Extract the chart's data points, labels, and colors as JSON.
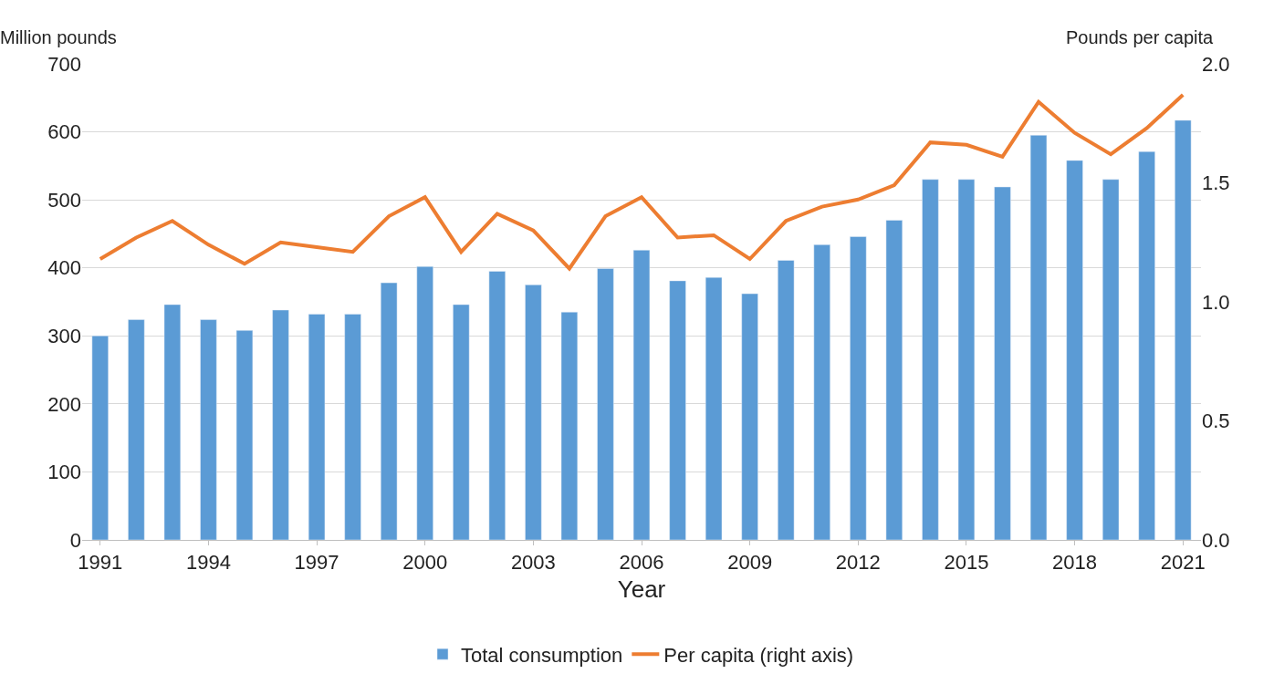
{
  "chart_data": {
    "type": "bar",
    "xlabel": "Year",
    "ylabel": "Million pounds",
    "y2label": "Pounds per capita",
    "x": [
      1991,
      1992,
      1993,
      1994,
      1995,
      1996,
      1997,
      1998,
      1999,
      2000,
      2001,
      2002,
      2003,
      2004,
      2005,
      2006,
      2007,
      2008,
      2009,
      2010,
      2011,
      2012,
      2013,
      2014,
      2015,
      2016,
      2017,
      2018,
      2019,
      2020,
      2021
    ],
    "xlim": [
      1990.5,
      2021.5
    ],
    "xticks": [
      1991,
      1994,
      1997,
      2000,
      2003,
      2006,
      2009,
      2012,
      2015,
      2018,
      2021
    ],
    "ylim": [
      0,
      700
    ],
    "yticks": [
      0,
      100,
      200,
      300,
      400,
      500,
      600,
      700
    ],
    "y2lim": [
      0,
      2
    ],
    "y2ticks": [
      {
        "value": 0,
        "label": "0.0"
      },
      {
        "value": 0.5,
        "label": "0.5"
      },
      {
        "value": 1,
        "label": "1.0"
      },
      {
        "value": 1.5,
        "label": "1.5"
      },
      {
        "value": 2,
        "label": "2.0"
      }
    ],
    "series": [
      {
        "name": "Total consumption",
        "color": "#5b9bd5",
        "values": [
          300,
          324,
          346,
          324,
          308,
          338,
          332,
          332,
          378,
          402,
          346,
          395,
          375,
          335,
          399,
          426,
          381,
          386,
          362,
          411,
          434,
          446,
          470,
          530,
          530,
          519,
          595,
          558,
          530,
          571,
          617
        ]
      },
      {
        "name": "Per capita (right axis)",
        "type": "line",
        "axis": "y2",
        "color": "#ed7d31",
        "line_style": "solid",
        "values": [
          1.18,
          1.27,
          1.34,
          1.24,
          1.16,
          1.25,
          1.23,
          1.21,
          1.36,
          1.44,
          1.21,
          1.37,
          1.3,
          1.14,
          1.36,
          1.44,
          1.27,
          1.28,
          1.18,
          1.34,
          1.4,
          1.43,
          1.49,
          1.67,
          1.66,
          1.61,
          1.84,
          1.71,
          1.62,
          1.73,
          1.87
        ]
      }
    ],
    "grid": "y",
    "legend": "bottom",
    "marker": "none"
  }
}
